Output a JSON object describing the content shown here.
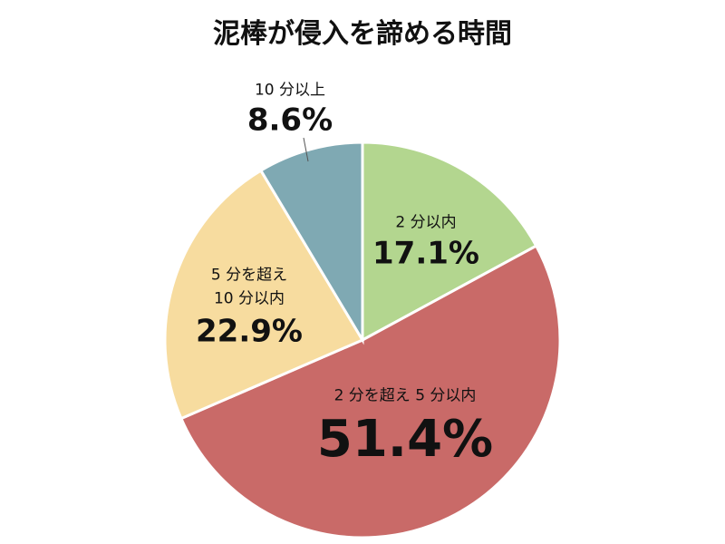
{
  "chart_data": {
    "type": "pie",
    "title": "泥棒が侵入を諦める時間",
    "categories": [
      "2 分以内",
      "2 分を超え 5 分以内",
      "5 分を超え\n10 分以内",
      "10 分以上"
    ],
    "values": [
      17.1,
      51.4,
      22.9,
      8.6
    ],
    "value_labels": [
      "17.1%",
      "51.4%",
      "22.9%",
      "8.6%"
    ],
    "colors": [
      "#b3d68f",
      "#c96a68",
      "#f7dc9f",
      "#7fa9b3"
    ]
  }
}
